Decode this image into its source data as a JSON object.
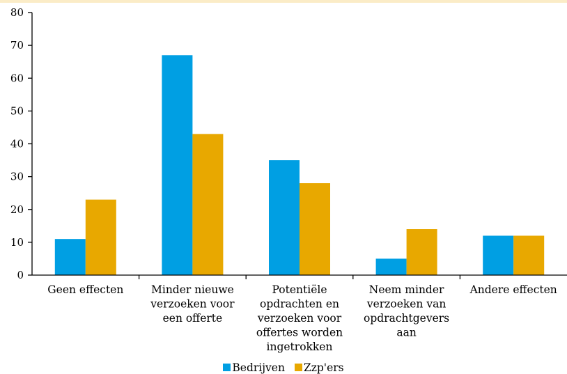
{
  "colors": {
    "accent_band": "#fbecc7",
    "axis": "#000000"
  },
  "chart_data": {
    "type": "bar",
    "categories": [
      [
        "Geen effecten"
      ],
      [
        "Minder nieuwe",
        "verzoeken voor",
        "een offerte"
      ],
      [
        "Potentiële",
        "opdrachten en",
        "verzoeken voor",
        "offertes worden",
        "ingetrokken"
      ],
      [
        "Neem minder",
        "verzoeken van",
        "opdrachtgevers",
        "aan"
      ],
      [
        "Andere effecten"
      ]
    ],
    "series": [
      {
        "name": "Bedrijven",
        "color": "#009fe3",
        "values": [
          11,
          67,
          35,
          5,
          12
        ]
      },
      {
        "name": "Zzp'ers",
        "color": "#e8a800",
        "values": [
          23,
          43,
          28,
          14,
          12
        ]
      }
    ],
    "ylim": [
      0,
      80
    ],
    "yticks": [
      0,
      10,
      20,
      30,
      40,
      50,
      60,
      70,
      80
    ],
    "grid": false,
    "legend_position": "bottom-center"
  }
}
